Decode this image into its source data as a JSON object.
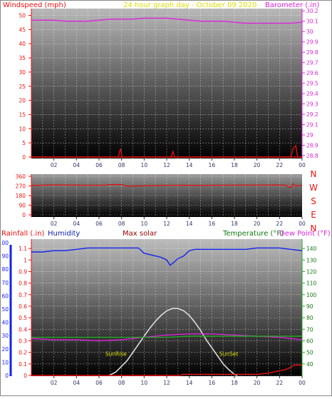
{
  "chart_data": [
    {
      "type": "line",
      "header": {
        "left": "Windspeed (mph)",
        "center": "24 hour graph day - October 09 2020",
        "right": "Barometer (.in)"
      },
      "x_ticks": [
        "02",
        "04",
        "06",
        "08",
        "10",
        "12",
        "14",
        "16",
        "18",
        "20",
        "22",
        "00"
      ],
      "y_left": {
        "label": "Windspeed (mph)",
        "ylim": [
          0,
          50
        ],
        "ticks": [
          0,
          5,
          10,
          15,
          20,
          25,
          30,
          35,
          40,
          45,
          50
        ]
      },
      "y_right": {
        "label": "Barometer (.in)",
        "ylim": [
          28.8,
          30.25
        ],
        "ticks": [
          28.8,
          28.9,
          29,
          29.1,
          29.2,
          29.3,
          29.4,
          29.5,
          29.6,
          29.7,
          29.8,
          29.9,
          30,
          30.1,
          30.2
        ]
      },
      "series": [
        {
          "name": "Barometer",
          "axis": "right",
          "color": "#dd22dd",
          "x": [
            0,
            1,
            2,
            3,
            4,
            5,
            6,
            7,
            8,
            9,
            10,
            11,
            12,
            13,
            14,
            15,
            16,
            17,
            18,
            19,
            20,
            21,
            22,
            23,
            24
          ],
          "values": [
            30.11,
            30.11,
            30.11,
            30.1,
            30.1,
            30.1,
            30.11,
            30.12,
            30.12,
            30.12,
            30.13,
            30.13,
            30.13,
            30.12,
            30.11,
            30.1,
            30.1,
            30.1,
            30.09,
            30.08,
            30.08,
            30.08,
            30.08,
            30.08,
            30.09
          ]
        },
        {
          "name": "Windspeed",
          "axis": "left",
          "color": "#dd1111",
          "x": [
            0,
            7.7,
            7.9,
            8.05,
            12.4,
            12.55,
            12.7,
            23.0,
            23.2,
            23.45,
            23.6,
            24
          ],
          "values": [
            0,
            0,
            3,
            0,
            0,
            2,
            0,
            0,
            3,
            4,
            0,
            0
          ]
        }
      ]
    },
    {
      "type": "line",
      "x_ticks": [
        "02",
        "04",
        "06",
        "08",
        "10",
        "12",
        "14",
        "16",
        "18",
        "20",
        "22",
        "00"
      ],
      "y_left": {
        "label": "",
        "ylim": [
          0,
          360
        ],
        "ticks": [
          0,
          90,
          180,
          270,
          360
        ]
      },
      "compass": [
        "N",
        "W",
        "S",
        "E",
        "N"
      ],
      "series": [
        {
          "name": "Wind direction",
          "color": "#dd1111",
          "x": [
            0,
            1.5,
            3,
            5,
            6.5,
            7,
            8,
            8.5,
            11,
            13,
            15,
            17,
            19,
            21,
            22.5,
            23,
            23.2,
            23.4,
            23.6,
            24
          ],
          "values": [
            274,
            278,
            278,
            276,
            276,
            282,
            282,
            268,
            274,
            276,
            275,
            276,
            277,
            277,
            278,
            252,
            290,
            270,
            274,
            274
          ]
        }
      ]
    },
    {
      "type": "line",
      "header": {
        "rainfall": "Rainfall (.in)",
        "humidity": "Humidity",
        "solar": "Max solar",
        "temperature": "Temperature (°F)",
        "dewpoint": "Dew Point (°F)"
      },
      "x_ticks": [
        "02",
        "04",
        "06",
        "08",
        "10",
        "12",
        "14",
        "16",
        "18",
        "20",
        "22",
        "00"
      ],
      "y_humidity": {
        "ylim": [
          0,
          100
        ],
        "ticks": [
          0,
          10,
          20,
          30,
          40,
          50,
          60,
          70,
          80,
          90,
          100
        ]
      },
      "y_rain": {
        "ylim": [
          0,
          1.15
        ],
        "ticks": [
          0,
          0.1,
          0.2,
          0.3,
          0.4,
          0.5,
          0.6,
          0.7,
          0.8,
          0.9,
          1,
          1.1
        ]
      },
      "y_temp": {
        "ylim": [
          30,
          145
        ],
        "ticks": [
          40,
          50,
          60,
          70,
          80,
          90,
          100,
          110,
          120,
          130,
          140
        ]
      },
      "annotations": [
        {
          "text": "SunRise",
          "x": 7.5,
          "y": 0.17
        },
        {
          "text": "SunSet",
          "x": 17.5,
          "y": 0.17
        }
      ],
      "series": [
        {
          "name": "Humidity",
          "axis": "humidity",
          "color": "#1122ee",
          "x": [
            0,
            1,
            2,
            3,
            4,
            5,
            6,
            7,
            8,
            9,
            9.5,
            10,
            10.5,
            11,
            11.5,
            12,
            12.3,
            12.6,
            13,
            13.5,
            14,
            14.5,
            15,
            16,
            17,
            18,
            19,
            20,
            21,
            22,
            23,
            24
          ],
          "values": [
            93,
            93,
            94,
            94,
            95,
            96,
            96,
            96,
            96,
            96,
            96,
            92,
            91,
            90,
            89,
            87,
            83,
            85,
            88,
            90,
            94,
            95,
            95,
            95,
            95,
            95,
            95,
            96,
            96,
            96,
            95,
            94
          ]
        },
        {
          "name": "Max solar",
          "axis": "rain",
          "color": "#dddddd",
          "x": [
            6.9,
            7.5,
            8,
            8.5,
            9,
            9.5,
            10,
            10.5,
            11,
            11.5,
            12,
            12.5,
            13,
            13.5,
            14,
            14.5,
            15,
            15.5,
            16,
            16.5,
            17,
            17.5,
            18,
            18.25
          ],
          "values": [
            0,
            0.03,
            0.08,
            0.13,
            0.2,
            0.27,
            0.34,
            0.41,
            0.47,
            0.52,
            0.56,
            0.58,
            0.58,
            0.56,
            0.52,
            0.46,
            0.39,
            0.31,
            0.24,
            0.17,
            0.1,
            0.05,
            0.01,
            0
          ]
        },
        {
          "name": "Temperature",
          "axis": "temp",
          "color": "#dd22dd",
          "x": [
            0,
            2,
            4,
            6,
            8,
            10,
            12,
            14,
            16,
            18,
            20,
            22,
            24
          ],
          "values": [
            62,
            61,
            61,
            60,
            61,
            63,
            65,
            66,
            66,
            65,
            64,
            63,
            61
          ]
        },
        {
          "name": "Dew Point",
          "axis": "temp",
          "color": "#22aa22",
          "x": [
            0,
            2,
            4,
            6,
            8,
            10,
            12,
            14,
            16,
            18,
            20,
            22,
            24
          ],
          "values": [
            63,
            63,
            63,
            63,
            63,
            63,
            63,
            64,
            64,
            64,
            64,
            64,
            64
          ]
        },
        {
          "name": "Rainfall",
          "axis": "rain",
          "color": "#ee1111",
          "x": [
            0,
            13.2,
            13.4,
            17,
            18,
            18.5,
            19,
            20,
            21,
            21.5,
            22,
            22.5,
            23,
            23.3,
            23.6,
            24
          ],
          "values": [
            0,
            0,
            0.01,
            0.01,
            0.01,
            0.01,
            0.01,
            0.01,
            0.02,
            0.03,
            0.04,
            0.05,
            0.07,
            0.09,
            0.09,
            0.09
          ]
        }
      ]
    }
  ]
}
